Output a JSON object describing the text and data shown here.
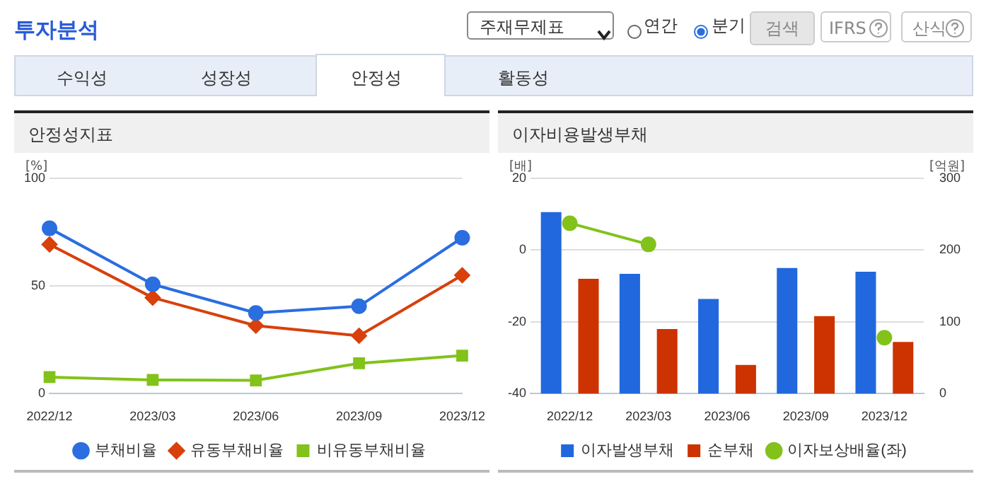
{
  "chart_data": [
    {
      "type": "line",
      "title": "안정성지표",
      "ylabel": "[%]",
      "categories": [
        "2022/12",
        "2023/03",
        "2023/06",
        "2023/09",
        "2023/12"
      ],
      "series": [
        {
          "name": "부채비율",
          "color": "#2a6ee0",
          "marker": "circle",
          "values": [
            76.8,
            50.8,
            37.5,
            40.6,
            72.4
          ]
        },
        {
          "name": "유동부채비율",
          "color": "#d8400c",
          "marker": "diamond",
          "values": [
            69.3,
            44.6,
            31.6,
            26.9,
            55.0
          ]
        },
        {
          "name": "비유동부채비율",
          "color": "#82c21a",
          "marker": "square",
          "values": [
            7.7,
            6.4,
            6.2,
            14.1,
            17.7
          ]
        }
      ],
      "ylim": [
        0,
        100
      ],
      "yticks": [
        0,
        50,
        100
      ],
      "grid": "y",
      "legend": "bottom",
      "annotations": [
        "투자분석",
        "주재무제표",
        "연간",
        "분기",
        "검색",
        "IFRS",
        "산식",
        "수익성",
        "성장성",
        "안정성",
        "활동성"
      ]
    },
    {
      "type": "bar",
      "title": "이자비용발생부채",
      "ylabel": "[배]",
      "y2label": "[억원]",
      "categories": [
        "2022/12",
        "2023/03",
        "2023/06",
        "2023/09",
        "2023/12"
      ],
      "series": [
        {
          "name": "이자발생부채",
          "color": "#2168de",
          "axis": "y2",
          "values": [
            253,
            167,
            132,
            175,
            170
          ]
        },
        {
          "name": "순부채",
          "color": "#cc3300",
          "axis": "y2",
          "values": [
            160,
            90,
            40,
            108,
            72
          ]
        },
        {
          "name": "이자보상배율(좌)",
          "type": "line",
          "color": "#82c21a",
          "marker": "circle",
          "values": [
            7.5,
            1.6,
            null,
            null,
            -24.4
          ]
        }
      ],
      "ylim": [
        -40,
        20
      ],
      "yticks": [
        -40,
        -20,
        0,
        20
      ],
      "y2lim": [
        0,
        300
      ],
      "y2ticks": [
        0,
        100,
        200,
        300
      ],
      "grid": "y",
      "legend": "bottom"
    }
  ]
}
